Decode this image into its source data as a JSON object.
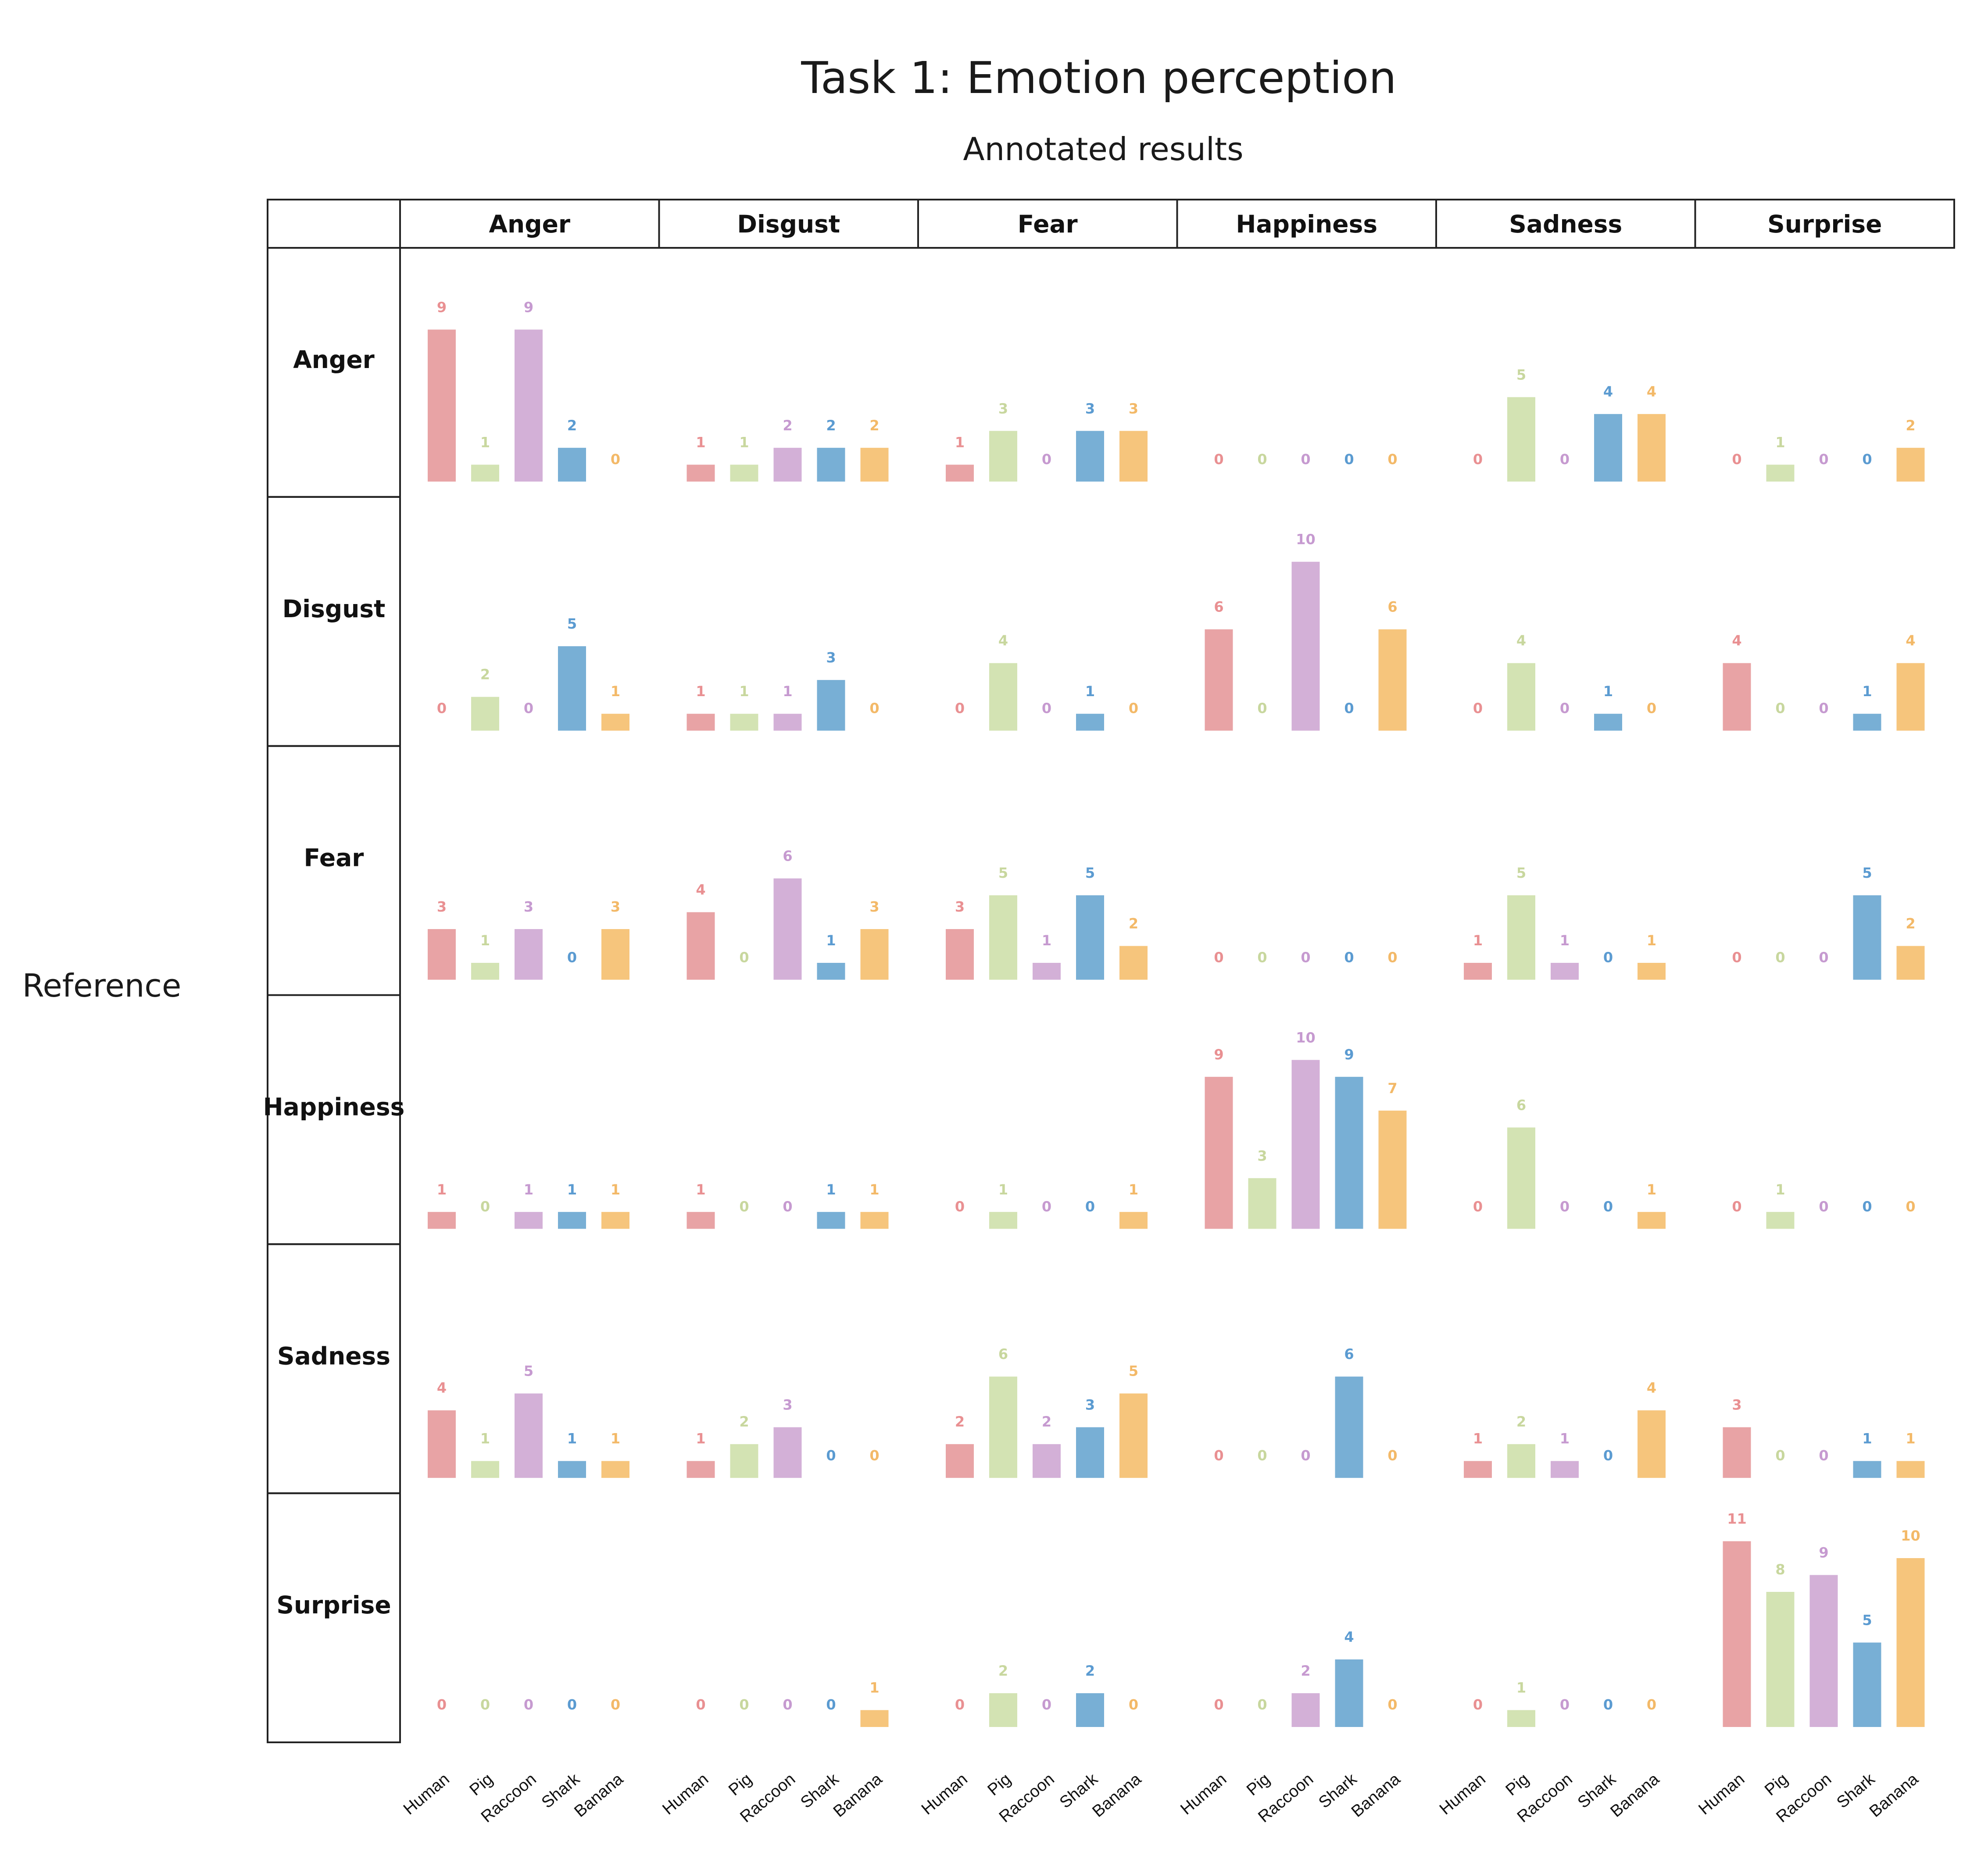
{
  "chart_data": {
    "type": "bar",
    "title": "Task 1: Emotion perception",
    "subtitle": "Annotated results",
    "row_axis_label": "Reference",
    "columns": [
      "Anger",
      "Disgust",
      "Fear",
      "Happiness",
      "Sadness",
      "Surprise"
    ],
    "rows": [
      "Anger",
      "Disgust",
      "Fear",
      "Happiness",
      "Sadness",
      "Surprise"
    ],
    "categories": [
      "Human",
      "Pig",
      "Raccoon",
      "Shark",
      "Banana"
    ],
    "colors": {
      "Human": "#e8a3a5",
      "Pig": "#d3e3b3",
      "Raccoon": "#d3b0d7",
      "Shark": "#78afd5",
      "Banana": "#f6c57c"
    },
    "label_colors": {
      "Human": "#e99092",
      "Pig": "#c8d79e",
      "Raccoon": "#c69ad0",
      "Shark": "#5b9bd1",
      "Banana": "#f3b968"
    },
    "ylim": [
      0,
      11
    ],
    "values": [
      [
        [
          9,
          1,
          9,
          2,
          0
        ],
        [
          1,
          1,
          2,
          2,
          2
        ],
        [
          1,
          3,
          0,
          3,
          3
        ],
        [
          0,
          0,
          0,
          0,
          0
        ],
        [
          0,
          5,
          0,
          4,
          4
        ],
        [
          0,
          1,
          0,
          0,
          2
        ]
      ],
      [
        [
          0,
          2,
          0,
          5,
          1
        ],
        [
          1,
          1,
          1,
          3,
          0
        ],
        [
          0,
          4,
          0,
          1,
          0
        ],
        [
          6,
          0,
          10,
          0,
          6
        ],
        [
          0,
          4,
          0,
          1,
          0
        ],
        [
          4,
          0,
          0,
          1,
          4
        ]
      ],
      [
        [
          3,
          1,
          3,
          0,
          3
        ],
        [
          4,
          0,
          6,
          1,
          3
        ],
        [
          3,
          5,
          1,
          5,
          2
        ],
        [
          0,
          0,
          0,
          0,
          0
        ],
        [
          1,
          5,
          1,
          0,
          1
        ],
        [
          0,
          0,
          0,
          5,
          2
        ]
      ],
      [
        [
          1,
          0,
          1,
          1,
          1
        ],
        [
          1,
          0,
          0,
          1,
          1
        ],
        [
          0,
          1,
          0,
          0,
          1
        ],
        [
          9,
          3,
          10,
          9,
          7
        ],
        [
          0,
          6,
          0,
          0,
          1
        ],
        [
          0,
          1,
          0,
          0,
          0
        ]
      ],
      [
        [
          4,
          1,
          5,
          1,
          1
        ],
        [
          1,
          2,
          3,
          0,
          0
        ],
        [
          2,
          6,
          2,
          3,
          5
        ],
        [
          0,
          0,
          0,
          6,
          0
        ],
        [
          1,
          2,
          1,
          0,
          4
        ],
        [
          3,
          0,
          0,
          1,
          1
        ]
      ],
      [
        [
          0,
          0,
          0,
          0,
          0
        ],
        [
          0,
          0,
          0,
          0,
          1
        ],
        [
          0,
          2,
          0,
          2,
          0
        ],
        [
          0,
          0,
          2,
          4,
          0
        ],
        [
          0,
          1,
          0,
          0,
          0
        ],
        [
          11,
          8,
          9,
          5,
          10
        ]
      ]
    ]
  }
}
